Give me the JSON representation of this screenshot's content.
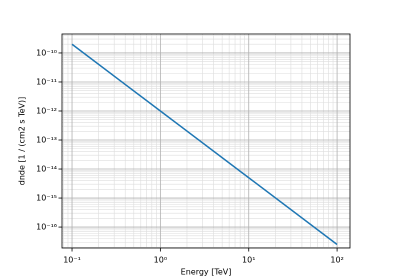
{
  "chart_data": {
    "type": "line",
    "xlabel": "Energy [TeV]",
    "ylabel": "dnde [1 / (cm2 s TeV)]",
    "xscale": "log",
    "yscale": "log",
    "grid": true,
    "x": [
      0.1,
      1,
      10,
      100
    ],
    "series": [
      {
        "color": "#1f77b4",
        "values": [
          1.995e-10,
          1e-12,
          5.01e-15,
          2.51e-17
        ]
      }
    ],
    "xlim": [
      0.077,
      140
    ],
    "ylim": [
      1.9e-17,
      4.5e-10
    ],
    "xticks": [
      {
        "value": 0.1,
        "label": "10⁻¹"
      },
      {
        "value": 1,
        "label": "10⁰"
      },
      {
        "value": 10,
        "label": "10¹"
      },
      {
        "value": 100,
        "label": "10²"
      }
    ],
    "yticks": [
      {
        "value": 1e-16,
        "label": "10⁻¹⁶"
      },
      {
        "value": 1e-15,
        "label": "10⁻¹⁵"
      },
      {
        "value": 1e-14,
        "label": "10⁻¹⁴"
      },
      {
        "value": 1e-13,
        "label": "10⁻¹³"
      },
      {
        "value": 1e-12,
        "label": "10⁻¹²"
      },
      {
        "value": 1e-11,
        "label": "10⁻¹¹"
      },
      {
        "value": 1e-10,
        "label": "10⁻¹⁰"
      }
    ],
    "xminorticks": [
      0.08,
      0.09,
      0.2,
      0.3,
      0.4,
      0.5,
      0.6,
      0.7,
      0.8,
      0.9,
      2,
      3,
      4,
      5,
      6,
      7,
      8,
      9,
      20,
      30,
      40,
      50,
      60,
      70,
      80,
      90
    ],
    "yminorticks": [
      2e-17,
      3e-17,
      4e-17,
      5e-17,
      6e-17,
      7e-17,
      8e-17,
      9e-17,
      2e-16,
      3e-16,
      4e-16,
      5e-16,
      6e-16,
      7e-16,
      8e-16,
      9e-16,
      2e-15,
      3e-15,
      4e-15,
      5e-15,
      6e-15,
      7e-15,
      8e-15,
      9e-15,
      2e-14,
      3e-14,
      4e-14,
      5e-14,
      6e-14,
      7e-14,
      8e-14,
      9e-14,
      2e-13,
      3e-13,
      4e-13,
      5e-13,
      6e-13,
      7e-13,
      8e-13,
      9e-13,
      2e-12,
      3e-12,
      4e-12,
      5e-12,
      6e-12,
      7e-12,
      8e-12,
      9e-12,
      2e-11,
      3e-11,
      4e-11,
      5e-11,
      6e-11,
      7e-11,
      8e-11,
      9e-11,
      2e-10,
      3e-10,
      4e-10
    ]
  }
}
